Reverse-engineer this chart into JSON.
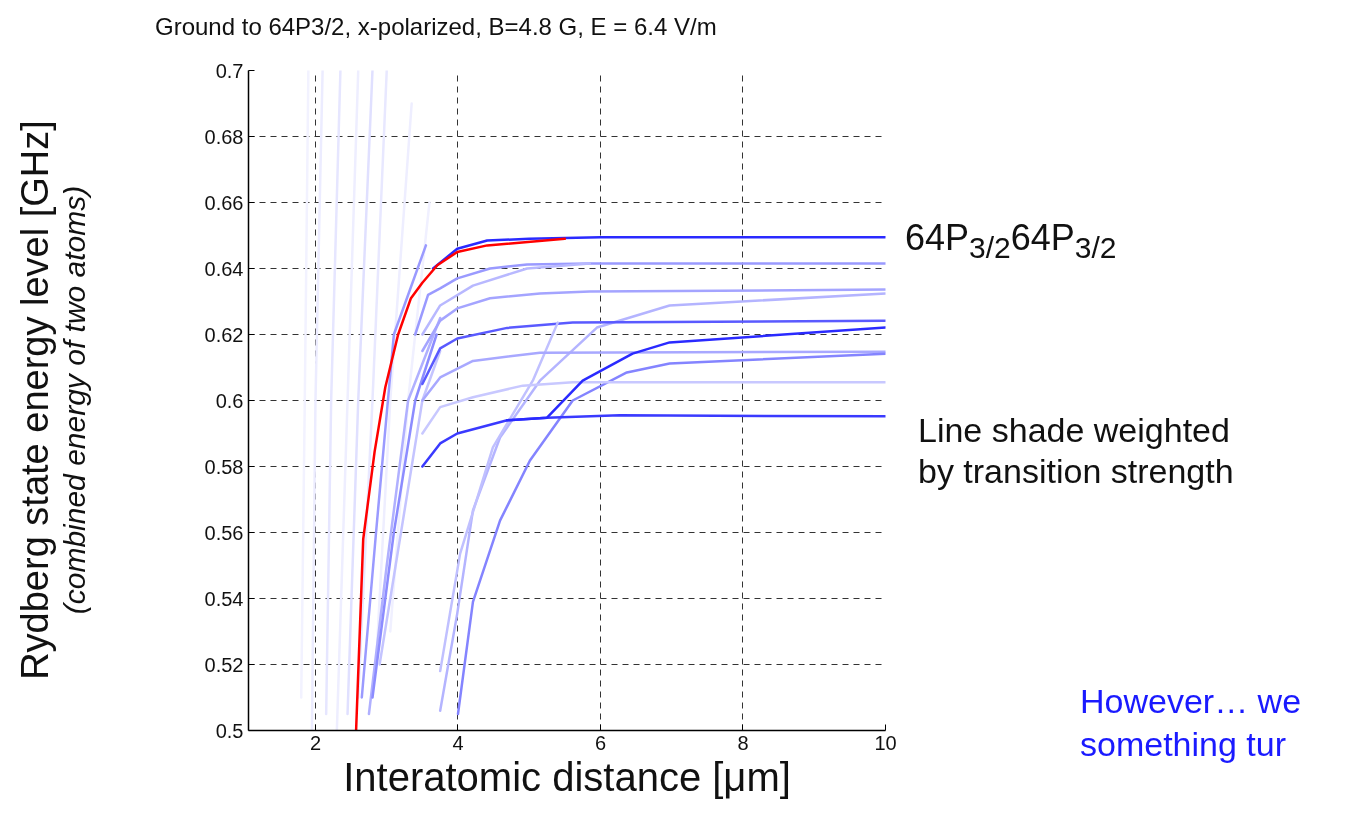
{
  "chart_data": {
    "type": "line",
    "title": "Ground to 64P3/2, x-polarized, B=4.8 G, E = 6.4 V/m",
    "xlabel": "Interatomic distance [μm]",
    "ylabel": "Rydberg state energy level [GHz]\n(combined energy of two atoms)",
    "xlim": [
      1.06,
      10
    ],
    "ylim": [
      0.5,
      0.7
    ],
    "xticks": [
      2,
      4,
      6,
      8,
      10
    ],
    "yticks": [
      0.5,
      0.52,
      0.54,
      0.56,
      0.58,
      0.6,
      0.62,
      0.64,
      0.66,
      0.68,
      0.7
    ],
    "grid": true,
    "line_style": "solid",
    "marker": "none",
    "annotations": [
      {
        "text": "64P$_{3/2}$64P$_{3/2}$",
        "x": 10,
        "y": 0.649
      },
      "Line shade weighted\nby transition strength",
      "However… we\nsomething tur"
    ],
    "series": [
      {
        "color": "#f2f2ff",
        "x": [
          1.8,
          1.85,
          1.9
        ],
        "values": [
          0.51,
          0.6,
          0.7
        ]
      },
      {
        "color": "#ececff",
        "x": [
          1.95,
          2.0,
          2.1
        ],
        "values": [
          0.5,
          0.6,
          0.7
        ]
      },
      {
        "color": "#e6e6ff",
        "x": [
          2.15,
          2.22,
          2.35
        ],
        "values": [
          0.505,
          0.6,
          0.7
        ]
      },
      {
        "color": "#eeeeff",
        "x": [
          2.3,
          2.45,
          2.6
        ],
        "values": [
          0.5,
          0.6,
          0.7
        ]
      },
      {
        "color": "#e0e0ff",
        "x": [
          2.45,
          2.6,
          2.8
        ],
        "values": [
          0.505,
          0.6,
          0.7
        ]
      },
      {
        "color": "#e8e8ff",
        "x": [
          2.6,
          2.8,
          3.0
        ],
        "values": [
          0.51,
          0.6,
          0.7
        ]
      },
      {
        "color": "#eeeeff",
        "x": [
          2.85,
          3.05,
          3.35
        ],
        "values": [
          0.52,
          0.6,
          0.69
        ]
      },
      {
        "color": "#f0f0ff",
        "x": [
          3.05,
          3.3,
          3.6
        ],
        "values": [
          0.53,
          0.6,
          0.66
        ]
      },
      {
        "color": "#9a9aff",
        "x": [
          2.65,
          2.85,
          3.1,
          3.55
        ],
        "values": [
          0.51,
          0.56,
          0.62,
          0.647
        ]
      },
      {
        "color": "#b0b0ff",
        "x": [
          2.75,
          3.0,
          3.3,
          3.75
        ],
        "values": [
          0.505,
          0.55,
          0.6,
          0.625
        ]
      },
      {
        "color": "#c4c4ff",
        "x": [
          2.9,
          3.2,
          3.5,
          3.75
        ],
        "values": [
          0.52,
          0.56,
          0.6,
          0.615
        ]
      },
      {
        "color": "#8c8cff",
        "x": [
          2.8,
          3.1,
          3.4,
          3.7
        ],
        "values": [
          0.51,
          0.56,
          0.6,
          0.62
        ]
      },
      {
        "color": "#2a2aff",
        "x": [
          3.65,
          3.99,
          4.41,
          5.0,
          6.0,
          10
        ],
        "values": [
          0.64,
          0.646,
          0.6485,
          0.649,
          0.6495,
          0.6495
        ]
      },
      {
        "color": "#9a9aff",
        "x": [
          3.4,
          3.58,
          3.75,
          3.99,
          4.45,
          4.97,
          5.85,
          10
        ],
        "values": [
          0.62,
          0.632,
          0.634,
          0.637,
          0.64,
          0.6412,
          0.6415,
          0.6415
        ]
      },
      {
        "color": "#b8b8ff",
        "x": [
          3.5,
          3.75,
          4.21,
          4.97,
          5.85
        ],
        "values": [
          0.62,
          0.6288,
          0.6348,
          0.64,
          0.6415
        ]
      },
      {
        "color": "#a4a4ff",
        "x": [
          3.5,
          3.75,
          3.99,
          4.45,
          5.15,
          5.85,
          10
        ],
        "values": [
          0.615,
          0.6242,
          0.6279,
          0.631,
          0.6324,
          0.633,
          0.6336
        ]
      },
      {
        "color": "#b4b4ff",
        "x": [
          3.75,
          3.99,
          4.21,
          4.59,
          5.15,
          5.95,
          6.97,
          10
        ],
        "values": [
          0.506,
          0.5355,
          0.5667,
          0.5888,
          0.606,
          0.6221,
          0.6288,
          0.6324
        ]
      },
      {
        "color": "#5a5aff",
        "x": [
          3.5,
          3.75,
          3.99,
          4.69,
          5.61,
          10
        ],
        "values": [
          0.605,
          0.6158,
          0.6188,
          0.622,
          0.6236,
          0.6242
        ]
      },
      {
        "color": "#c0c0ff",
        "x": [
          3.75,
          4.03,
          4.49,
          5.05,
          5.4
        ],
        "values": [
          0.518,
          0.5536,
          0.5858,
          0.606,
          0.6236
        ]
      },
      {
        "color": "#a8a8ff",
        "x": [
          3.5,
          3.75,
          4.21,
          5.15,
          10
        ],
        "values": [
          0.6,
          0.607,
          0.612,
          0.6145,
          0.6148
        ]
      },
      {
        "color": "#8484ff",
        "x": [
          4.0,
          4.21,
          4.59,
          5.01,
          5.61,
          6.37,
          6.97,
          10
        ],
        "values": [
          0.505,
          0.539,
          0.5636,
          0.5818,
          0.6,
          0.6085,
          0.6112,
          0.6142
        ]
      },
      {
        "color": "#c8c8ff",
        "x": [
          3.5,
          3.75,
          4.21,
          4.91,
          5.61,
          10
        ],
        "values": [
          0.59,
          0.598,
          0.601,
          0.6045,
          0.6055,
          0.6055
        ]
      },
      {
        "color": "#3a3aff",
        "x": [
          3.5,
          3.75,
          3.99,
          4.69,
          5.25,
          6.27,
          10
        ],
        "values": [
          0.58,
          0.587,
          0.59,
          0.594,
          0.5948,
          0.5955,
          0.5952
        ]
      },
      {
        "color": "#2a2aff",
        "x": [
          4.69,
          5.25,
          5.75,
          6.45,
          6.97,
          10
        ],
        "values": [
          0.594,
          0.5948,
          0.606,
          0.6142,
          0.6176,
          0.6221
        ]
      },
      {
        "color": "#ff0000",
        "x": [
          2.57,
          2.67,
          2.83,
          2.98,
          3.16,
          3.34,
          3.5,
          3.71,
          3.99,
          4.41,
          5.5
        ],
        "values": [
          0.5,
          0.558,
          0.5845,
          0.604,
          0.62,
          0.631,
          0.6357,
          0.641,
          0.645,
          0.647,
          0.649
        ]
      }
    ]
  }
}
